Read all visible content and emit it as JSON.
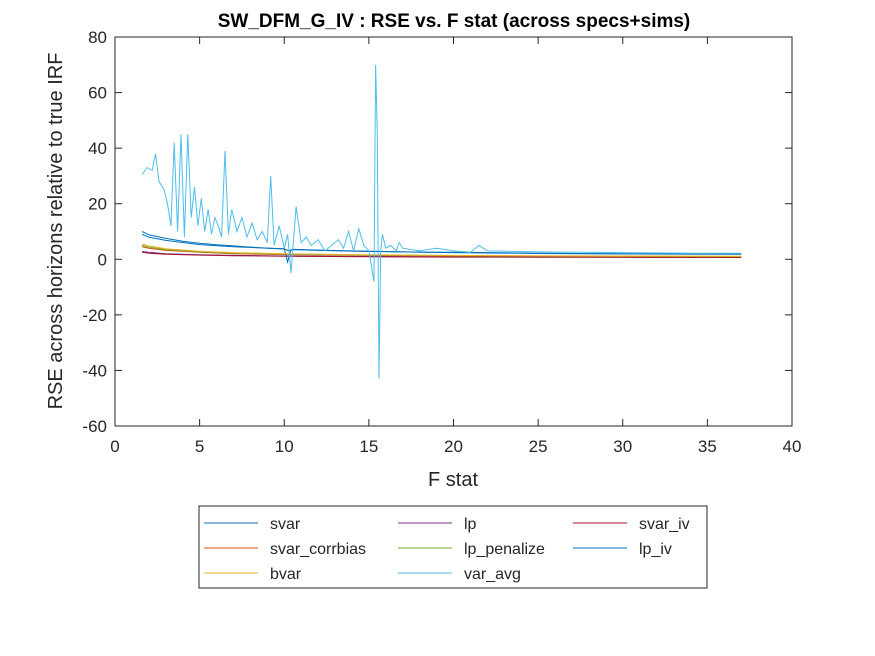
{
  "chart_data": {
    "type": "line",
    "title": "SW_DFM_G_IV : RSE vs. F stat (across specs+sims)",
    "xlabel": "F stat",
    "ylabel": "RSE across horizons relative to true IRF",
    "xlim": [
      0,
      40
    ],
    "ylim": [
      -60,
      80
    ],
    "xticks": [
      "0",
      "5",
      "10",
      "15",
      "20",
      "25",
      "30",
      "35",
      "40"
    ],
    "yticks": [
      "-60",
      "-40",
      "-20",
      "0",
      "20",
      "40",
      "60",
      "80"
    ],
    "grid": false,
    "legend_position": "bottom-outside",
    "series": [
      {
        "name": "svar",
        "color": "#0072BD",
        "x": [
          1.6,
          2,
          3,
          4,
          5,
          6,
          7,
          8,
          9,
          10,
          10.3,
          10.5,
          12,
          14,
          16,
          18,
          20,
          25,
          30,
          37
        ],
        "y": [
          10,
          8.8,
          7.5,
          6.5,
          5.8,
          5.2,
          4.8,
          4.4,
          4.0,
          3.7,
          3.0,
          3.6,
          3.3,
          3.0,
          2.8,
          2.6,
          2.5,
          2.2,
          2.0,
          1.9
        ]
      },
      {
        "name": "lp",
        "color": "#7E2F8E",
        "x": [
          1.6,
          2,
          3,
          5,
          7,
          10,
          15,
          20,
          25,
          30,
          37
        ],
        "y": [
          2.8,
          2.5,
          2.0,
          1.6,
          1.4,
          1.2,
          1.0,
          0.9,
          0.85,
          0.8,
          0.75
        ]
      },
      {
        "name": "svar_iv",
        "color": "#A2142F",
        "x": [
          1.6,
          2,
          3,
          5,
          7,
          10,
          15,
          20,
          25,
          30,
          37
        ],
        "y": [
          2.5,
          2.2,
          1.8,
          1.5,
          1.3,
          1.1,
          0.9,
          0.8,
          0.75,
          0.7,
          0.65
        ]
      },
      {
        "name": "svar_corrbias",
        "color": "#D95319",
        "x": [
          1.6,
          2,
          3,
          5,
          7,
          10,
          15,
          20,
          25,
          30,
          37
        ],
        "y": [
          4.5,
          4.0,
          3.2,
          2.5,
          2.0,
          1.7,
          1.4,
          1.2,
          1.1,
          1.0,
          0.9
        ]
      },
      {
        "name": "lp_penalize",
        "color": "#77AC30",
        "x": [
          1.6,
          2,
          3,
          5,
          7,
          10,
          15,
          20,
          25,
          30,
          37
        ],
        "y": [
          5.0,
          4.4,
          3.5,
          2.7,
          2.2,
          1.8,
          1.5,
          1.3,
          1.2,
          1.1,
          1.0
        ]
      },
      {
        "name": "lp_iv",
        "color": "#0072BD",
        "x": [
          1.6,
          2,
          3,
          5,
          7,
          10,
          10.2,
          10.4,
          12,
          15,
          20,
          25,
          30,
          37
        ],
        "y": [
          9.0,
          8.0,
          6.8,
          5.3,
          4.5,
          3.8,
          -1.0,
          3.5,
          3.2,
          2.8,
          2.4,
          2.1,
          1.9,
          1.8
        ]
      },
      {
        "name": "bvar",
        "color": "#EDB120",
        "x": [
          1.6,
          2,
          3,
          5,
          7,
          10,
          15,
          20,
          25,
          30,
          37
        ],
        "y": [
          5.5,
          4.8,
          3.8,
          2.9,
          2.4,
          2.0,
          1.6,
          1.4,
          1.3,
          1.2,
          1.1
        ]
      },
      {
        "name": "var_avg",
        "color": "#4DBEEE",
        "x": [
          1.6,
          1.9,
          2.2,
          2.4,
          2.6,
          2.9,
          3.1,
          3.3,
          3.5,
          3.7,
          3.9,
          4.1,
          4.3,
          4.5,
          4.7,
          4.9,
          5.1,
          5.3,
          5.5,
          5.7,
          5.9,
          6.1,
          6.3,
          6.5,
          6.7,
          6.9,
          7.2,
          7.5,
          7.8,
          8.1,
          8.4,
          8.7,
          9.0,
          9.2,
          9.4,
          9.7,
          10.0,
          10.2,
          10.4,
          10.7,
          11.0,
          11.3,
          11.6,
          12.0,
          12.4,
          12.8,
          13.2,
          13.5,
          13.8,
          14.1,
          14.4,
          14.7,
          15.0,
          15.3,
          15.4,
          15.5,
          15.6,
          15.7,
          15.8,
          16.0,
          16.3,
          16.6,
          16.8,
          17.0,
          18.0,
          19.0,
          20.0,
          21.0,
          21.5,
          22.0,
          24.0,
          26.0,
          28.0,
          30.0,
          32.0,
          34.0,
          37.0
        ],
        "y": [
          30.5,
          33.0,
          32.0,
          38.0,
          28.0,
          25.0,
          20.0,
          12.0,
          42.0,
          10.0,
          45.0,
          8.0,
          45.0,
          15.0,
          26.0,
          12.0,
          22.0,
          10.0,
          18.0,
          9.0,
          15.0,
          12.0,
          8.0,
          39.0,
          9.0,
          18.0,
          10.0,
          15.0,
          8.0,
          13.0,
          7.0,
          10.0,
          6.0,
          30.0,
          5.0,
          12.0,
          4.0,
          9.0,
          -5.0,
          19.0,
          6.0,
          8.0,
          5.0,
          7.0,
          3.0,
          5.0,
          7.0,
          4.0,
          10.0,
          3.0,
          11.0,
          5.0,
          3.0,
          -8.0,
          70.0,
          45.0,
          -43.0,
          3.0,
          9.0,
          4.0,
          5.0,
          3.0,
          6.0,
          4.0,
          3.0,
          4.0,
          3.0,
          2.5,
          5.0,
          3.0,
          2.8,
          2.6,
          2.5,
          2.4,
          2.3,
          2.2,
          2.2
        ]
      }
    ]
  }
}
